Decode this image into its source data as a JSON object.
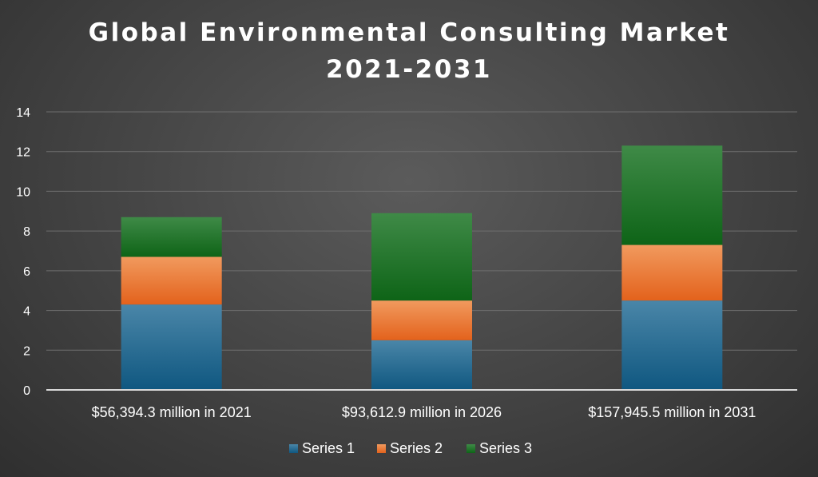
{
  "chart_data": {
    "type": "bar",
    "stacked": true,
    "title_line1": "Global Environmental Consulting Market",
    "title_line2": "2021-2031",
    "xlabel": "",
    "ylabel": "",
    "categories": [
      "$56,394.3 million in 2021",
      "$93,612.9 million in 2026",
      "$157,945.5 million in 2031"
    ],
    "series": [
      {
        "name": "Series 1",
        "values": [
          4.3,
          2.5,
          4.5
        ],
        "color_top": "#4a86a8",
        "color_bottom": "#0f5780"
      },
      {
        "name": "Series 2",
        "values": [
          2.4,
          2.0,
          2.8
        ],
        "color_top": "#f19a5e",
        "color_bottom": "#e3621c"
      },
      {
        "name": "Series 3",
        "values": [
          2.0,
          4.4,
          5.0
        ],
        "color_top": "#3f8a47",
        "color_bottom": "#0e6417"
      }
    ],
    "ylim": [
      0,
      14
    ],
    "yticks": [
      "0",
      "2",
      "4",
      "6",
      "8",
      "10",
      "12",
      "14"
    ],
    "grid": true,
    "legend_position": "bottom"
  }
}
